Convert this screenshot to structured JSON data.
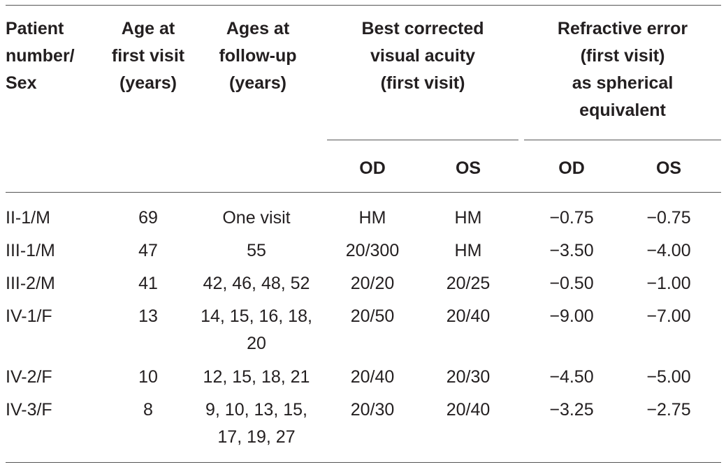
{
  "table": {
    "headers": {
      "patient": [
        "Patient",
        "number/",
        "Sex"
      ],
      "age_first": [
        "Age at",
        "first visit",
        "(years)"
      ],
      "ages_followup": [
        "Ages at",
        "follow-up",
        "(years)"
      ],
      "bcva": [
        "Best corrected",
        "visual acuity",
        "(first visit)"
      ],
      "refractive": [
        "Refractive error",
        "(first visit)",
        "as spherical",
        "equivalent"
      ],
      "bcva_od": "OD",
      "bcva_os": "OS",
      "re_od": "OD",
      "re_os": "OS"
    },
    "rows": [
      {
        "patient": "II-1/M",
        "age": "69",
        "followup": [
          "One visit"
        ],
        "bcva_od": "HM",
        "bcva_os": "HM",
        "re_od": "−0.75",
        "re_os": "−0.75"
      },
      {
        "patient": "III-1/M",
        "age": "47",
        "followup": [
          "55"
        ],
        "bcva_od": "20/300",
        "bcva_os": "HM",
        "re_od": "−3.50",
        "re_os": "−4.00"
      },
      {
        "patient": "III-2/M",
        "age": "41",
        "followup": [
          "42, 46, 48, 52"
        ],
        "bcva_od": "20/20",
        "bcva_os": "20/25",
        "re_od": "−0.50",
        "re_os": "−1.00"
      },
      {
        "patient": "IV-1/F",
        "age": "13",
        "followup": [
          "14, 15, 16, 18,",
          "20"
        ],
        "bcva_od": "20/50",
        "bcva_os": "20/40",
        "re_od": "−9.00",
        "re_os": "−7.00"
      },
      {
        "patient": "IV-2/F",
        "age": "10",
        "followup": [
          "12, 15, 18, 21"
        ],
        "bcva_od": "20/40",
        "bcva_os": "20/30",
        "re_od": "−4.50",
        "re_os": "−5.00"
      },
      {
        "patient": "IV-3/F",
        "age": "8",
        "followup": [
          "9, 10, 13, 15,",
          "17, 19, 27"
        ],
        "bcva_od": "20/30",
        "bcva_os": "20/40",
        "re_od": "−3.25",
        "re_os": "−2.75"
      }
    ]
  }
}
